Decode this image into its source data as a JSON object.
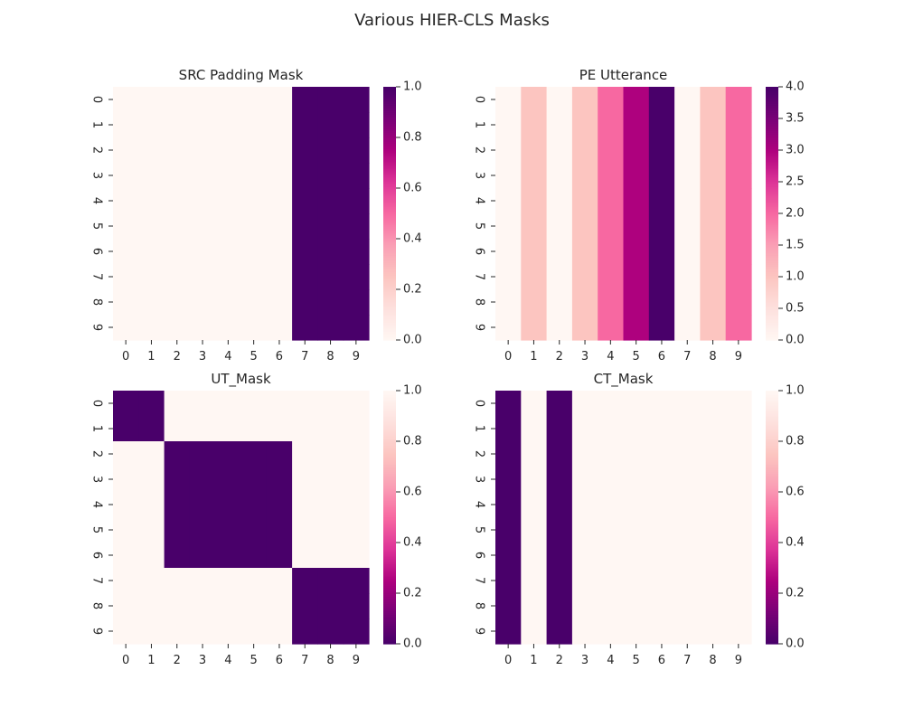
{
  "figure": {
    "suptitle": "Various HIER-CLS Masks"
  },
  "colors": {
    "rdpu": [
      "#fff7f3",
      "#fde0dd",
      "#fcc5c0",
      "#fa9fb5",
      "#f768a1",
      "#dd3497",
      "#ae017e",
      "#7a0177",
      "#49006a"
    ],
    "tick_color": "#262626",
    "background": "#ffffff"
  },
  "chart_data": [
    {
      "type": "heatmap",
      "title": "SRC Padding Mask",
      "x": [
        "0",
        "1",
        "2",
        "3",
        "4",
        "5",
        "6",
        "7",
        "8",
        "9"
      ],
      "y": [
        "0",
        "1",
        "2",
        "3",
        "4",
        "5",
        "6",
        "7",
        "8",
        "9"
      ],
      "colormap": "RdPu",
      "reversed": false,
      "vmin": 0,
      "vmax": 1,
      "colorbar_ticks": [
        "0.0",
        "0.2",
        "0.4",
        "0.6",
        "0.8",
        "1.0"
      ],
      "values": [
        [
          0,
          0,
          0,
          0,
          0,
          0,
          0,
          1,
          1,
          1
        ],
        [
          0,
          0,
          0,
          0,
          0,
          0,
          0,
          1,
          1,
          1
        ],
        [
          0,
          0,
          0,
          0,
          0,
          0,
          0,
          1,
          1,
          1
        ],
        [
          0,
          0,
          0,
          0,
          0,
          0,
          0,
          1,
          1,
          1
        ],
        [
          0,
          0,
          0,
          0,
          0,
          0,
          0,
          1,
          1,
          1
        ],
        [
          0,
          0,
          0,
          0,
          0,
          0,
          0,
          1,
          1,
          1
        ],
        [
          0,
          0,
          0,
          0,
          0,
          0,
          0,
          1,
          1,
          1
        ],
        [
          0,
          0,
          0,
          0,
          0,
          0,
          0,
          1,
          1,
          1
        ],
        [
          0,
          0,
          0,
          0,
          0,
          0,
          0,
          1,
          1,
          1
        ],
        [
          0,
          0,
          0,
          0,
          0,
          0,
          0,
          1,
          1,
          1
        ]
      ]
    },
    {
      "type": "heatmap",
      "title": "PE Utterance",
      "x": [
        "0",
        "1",
        "2",
        "3",
        "4",
        "5",
        "6",
        "7",
        "8",
        "9"
      ],
      "y": [
        "0",
        "1",
        "2",
        "3",
        "4",
        "5",
        "6",
        "7",
        "8",
        "9"
      ],
      "colormap": "RdPu",
      "reversed": false,
      "vmin": 0,
      "vmax": 4,
      "colorbar_ticks": [
        "0.0",
        "0.5",
        "1.0",
        "1.5",
        "2.0",
        "2.5",
        "3.0",
        "3.5",
        "4.0"
      ],
      "values": [
        [
          0,
          1,
          0,
          1,
          2,
          3,
          4,
          0,
          1,
          2
        ],
        [
          0,
          1,
          0,
          1,
          2,
          3,
          4,
          0,
          1,
          2
        ],
        [
          0,
          1,
          0,
          1,
          2,
          3,
          4,
          0,
          1,
          2
        ],
        [
          0,
          1,
          0,
          1,
          2,
          3,
          4,
          0,
          1,
          2
        ],
        [
          0,
          1,
          0,
          1,
          2,
          3,
          4,
          0,
          1,
          2
        ],
        [
          0,
          1,
          0,
          1,
          2,
          3,
          4,
          0,
          1,
          2
        ],
        [
          0,
          1,
          0,
          1,
          2,
          3,
          4,
          0,
          1,
          2
        ],
        [
          0,
          1,
          0,
          1,
          2,
          3,
          4,
          0,
          1,
          2
        ],
        [
          0,
          1,
          0,
          1,
          2,
          3,
          4,
          0,
          1,
          2
        ],
        [
          0,
          1,
          0,
          1,
          2,
          3,
          4,
          0,
          1,
          2
        ]
      ]
    },
    {
      "type": "heatmap",
      "title": "UT_Mask",
      "x": [
        "0",
        "1",
        "2",
        "3",
        "4",
        "5",
        "6",
        "7",
        "8",
        "9"
      ],
      "y": [
        "0",
        "1",
        "2",
        "3",
        "4",
        "5",
        "6",
        "7",
        "8",
        "9"
      ],
      "colormap": "RdPu_r",
      "reversed": true,
      "vmin": 0,
      "vmax": 1,
      "colorbar_ticks": [
        "0.0",
        "0.2",
        "0.4",
        "0.6",
        "0.8",
        "1.0"
      ],
      "values": [
        [
          0,
          0,
          1,
          1,
          1,
          1,
          1,
          1,
          1,
          1
        ],
        [
          0,
          0,
          1,
          1,
          1,
          1,
          1,
          1,
          1,
          1
        ],
        [
          1,
          1,
          0,
          0,
          0,
          0,
          0,
          1,
          1,
          1
        ],
        [
          1,
          1,
          0,
          0,
          0,
          0,
          0,
          1,
          1,
          1
        ],
        [
          1,
          1,
          0,
          0,
          0,
          0,
          0,
          1,
          1,
          1
        ],
        [
          1,
          1,
          0,
          0,
          0,
          0,
          0,
          1,
          1,
          1
        ],
        [
          1,
          1,
          0,
          0,
          0,
          0,
          0,
          1,
          1,
          1
        ],
        [
          1,
          1,
          1,
          1,
          1,
          1,
          1,
          0,
          0,
          0
        ],
        [
          1,
          1,
          1,
          1,
          1,
          1,
          1,
          0,
          0,
          0
        ],
        [
          1,
          1,
          1,
          1,
          1,
          1,
          1,
          0,
          0,
          0
        ]
      ]
    },
    {
      "type": "heatmap",
      "title": "CT_Mask",
      "x": [
        "0",
        "1",
        "2",
        "3",
        "4",
        "5",
        "6",
        "7",
        "8",
        "9"
      ],
      "y": [
        "0",
        "1",
        "2",
        "3",
        "4",
        "5",
        "6",
        "7",
        "8",
        "9"
      ],
      "colormap": "RdPu_r",
      "reversed": true,
      "vmin": 0,
      "vmax": 1,
      "colorbar_ticks": [
        "0.0",
        "0.2",
        "0.4",
        "0.6",
        "0.8",
        "1.0"
      ],
      "values": [
        [
          0,
          1,
          0,
          1,
          1,
          1,
          1,
          1,
          1,
          1
        ],
        [
          0,
          1,
          0,
          1,
          1,
          1,
          1,
          1,
          1,
          1
        ],
        [
          0,
          1,
          0,
          1,
          1,
          1,
          1,
          1,
          1,
          1
        ],
        [
          0,
          1,
          0,
          1,
          1,
          1,
          1,
          1,
          1,
          1
        ],
        [
          0,
          1,
          0,
          1,
          1,
          1,
          1,
          1,
          1,
          1
        ],
        [
          0,
          1,
          0,
          1,
          1,
          1,
          1,
          1,
          1,
          1
        ],
        [
          0,
          1,
          0,
          1,
          1,
          1,
          1,
          1,
          1,
          1
        ],
        [
          0,
          1,
          0,
          1,
          1,
          1,
          1,
          1,
          1,
          1
        ],
        [
          0,
          1,
          0,
          1,
          1,
          1,
          1,
          1,
          1,
          1
        ],
        [
          0,
          1,
          0,
          1,
          1,
          1,
          1,
          1,
          1,
          1
        ]
      ]
    }
  ]
}
